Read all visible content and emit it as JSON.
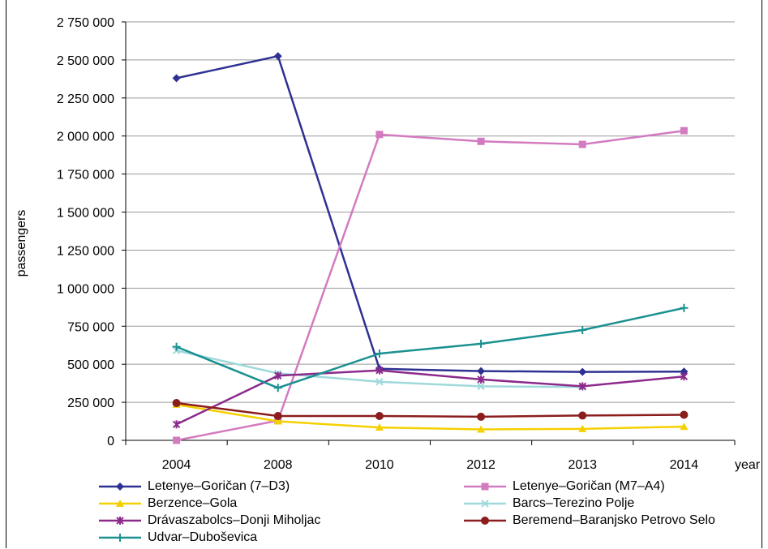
{
  "chart_data": {
    "type": "line",
    "title": "",
    "xlabel": "year",
    "ylabel": "passengers",
    "categories": [
      "2004",
      "2008",
      "2010",
      "2012",
      "2013",
      "2014"
    ],
    "ylim": [
      0,
      2750000
    ],
    "yticks": [
      0,
      250000,
      500000,
      750000,
      1000000,
      1250000,
      1500000,
      1750000,
      2000000,
      2250000,
      2500000,
      2750000
    ],
    "ytick_labels": [
      "0",
      "250 000",
      "500 000",
      "750 000",
      "1 000 000",
      "1 250 000",
      "1 500 000",
      "1 750 000",
      "2 000 000",
      "2 250 000",
      "2 500 000",
      "2 750 000"
    ],
    "grid": "horizontal",
    "legend_position": "bottom",
    "series": [
      {
        "name": "Letenye–Goričan (7–D3)",
        "color": "#2e3192",
        "marker": "diamond",
        "values": [
          2380000,
          2525000,
          470000,
          455000,
          450000,
          452000
        ]
      },
      {
        "name": "Letenye–Goričan (M7–A4)",
        "color": "#d37bc0",
        "marker": "square",
        "values": [
          0,
          130000,
          2010000,
          1965000,
          1945000,
          2035000
        ]
      },
      {
        "name": "Berzence–Gola",
        "color": "#f5d000",
        "marker": "triangle",
        "values": [
          235000,
          125000,
          85000,
          72000,
          75000,
          90000
        ]
      },
      {
        "name": "Barcs–Terezino Polje",
        "color": "#9fd9dc",
        "marker": "x",
        "values": [
          590000,
          440000,
          385000,
          355000,
          350000,
          null
        ]
      },
      {
        "name": "Drávaszabolcs–Donji Miholjac",
        "color": "#8b2a8b",
        "marker": "star",
        "values": [
          105000,
          425000,
          460000,
          400000,
          355000,
          420000
        ]
      },
      {
        "name": "Beremend–Baranjsko Petrovo Selo",
        "color": "#8b1d1d",
        "marker": "circle",
        "values": [
          245000,
          160000,
          160000,
          155000,
          163000,
          168000
        ]
      },
      {
        "name": "Udvar–Duboševica",
        "color": "#1a9090",
        "marker": "plus",
        "values": [
          615000,
          345000,
          570000,
          635000,
          725000,
          870000
        ]
      }
    ]
  }
}
